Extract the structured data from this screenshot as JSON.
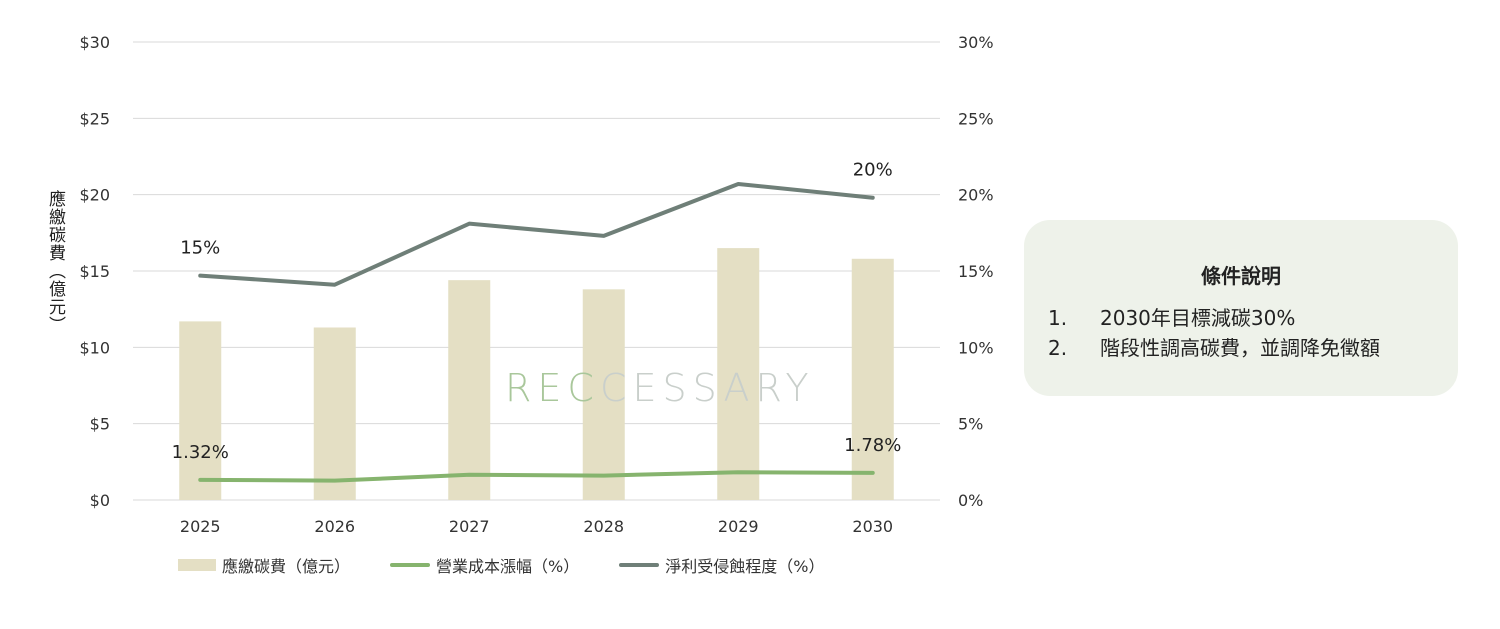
{
  "chart_data": {
    "type": "bar+line",
    "categories": [
      "2025",
      "2026",
      "2027",
      "2028",
      "2029",
      "2030"
    ],
    "ylabel": "應繳碳費（億元）",
    "y_left_ticks": [
      "$0",
      "$5",
      "$10",
      "$15",
      "$20",
      "$25",
      "$30"
    ],
    "y_right_ticks": [
      "0%",
      "5%",
      "10%",
      "15%",
      "20%",
      "25%",
      "30%"
    ],
    "ylim": [
      0,
      30
    ],
    "y2lim": [
      0,
      30
    ],
    "grid": true,
    "legend_position": "bottom",
    "series": [
      {
        "name": "應繳碳費（億元）",
        "kind": "bar",
        "axis": "left",
        "color": "#e4dfc4",
        "values": [
          11.7,
          11.3,
          14.4,
          13.8,
          16.5,
          15.8
        ]
      },
      {
        "name": "營業成本漲幅（%）",
        "kind": "line",
        "axis": "right",
        "color": "#86b46e",
        "values": [
          1.32,
          1.27,
          1.65,
          1.6,
          1.82,
          1.78
        ]
      },
      {
        "name": "淨利受侵蝕程度（%）",
        "kind": "line",
        "axis": "right",
        "color": "#6f7f78",
        "values": [
          14.7,
          14.1,
          18.1,
          17.3,
          20.7,
          19.8
        ]
      }
    ],
    "annotations": [
      {
        "series": 2,
        "index": 0,
        "text": "15%"
      },
      {
        "series": 2,
        "index": 5,
        "text": "20%"
      },
      {
        "series": 1,
        "index": 0,
        "text": "1.32%"
      },
      {
        "series": 1,
        "index": 5,
        "text": "1.78%"
      }
    ]
  },
  "watermark": {
    "part1": "REC",
    "part2": "CESSARY"
  },
  "note": {
    "title": "條件說明",
    "items": [
      {
        "num": "1.",
        "text": "2030年目標減碳30%"
      },
      {
        "num": "2.",
        "text": "階段性調高碳費，並調降免徵額"
      }
    ]
  }
}
